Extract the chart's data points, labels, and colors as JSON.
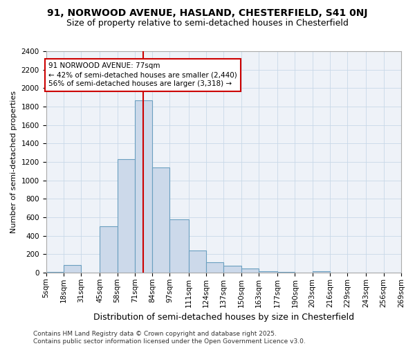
{
  "title1": "91, NORWOOD AVENUE, HASLAND, CHESTERFIELD, S41 0NJ",
  "title2": "Size of property relative to semi-detached houses in Chesterfield",
  "xlabel": "Distribution of semi-detached houses by size in Chesterfield",
  "ylabel": "Number of semi-detached properties",
  "bins": [
    5,
    18,
    31,
    45,
    58,
    71,
    84,
    97,
    111,
    124,
    137,
    150,
    163,
    177,
    190,
    203,
    216,
    229,
    243,
    256,
    269
  ],
  "bin_labels": [
    "5sqm",
    "18sqm",
    "31sqm",
    "45sqm",
    "58sqm",
    "71sqm",
    "84sqm",
    "97sqm",
    "111sqm",
    "124sqm",
    "137sqm",
    "150sqm",
    "163sqm",
    "177sqm",
    "190sqm",
    "203sqm",
    "216sqm",
    "229sqm",
    "243sqm",
    "256sqm",
    "269sqm"
  ],
  "heights": [
    10,
    80,
    0,
    500,
    1230,
    1870,
    1140,
    575,
    240,
    115,
    75,
    45,
    15,
    10,
    0,
    15,
    0,
    0,
    0,
    0
  ],
  "bar_color": "#ccd9ea",
  "bar_edge_color": "#6a9fc0",
  "vline_x": 77,
  "vline_color": "#cc0000",
  "annotation_text": "91 NORWOOD AVENUE: 77sqm\n← 42% of semi-detached houses are smaller (2,440)\n56% of semi-detached houses are larger (3,318) →",
  "annotation_box_color": "white",
  "annotation_box_edge_color": "#cc0000",
  "ylim": [
    0,
    2400
  ],
  "yticks": [
    0,
    200,
    400,
    600,
    800,
    1000,
    1200,
    1400,
    1600,
    1800,
    2000,
    2200,
    2400
  ],
  "grid_color": "#c8d8e8",
  "bg_color": "#eef2f8",
  "footer": "Contains HM Land Registry data © Crown copyright and database right 2025.\nContains public sector information licensed under the Open Government Licence v3.0.",
  "title1_fontsize": 10,
  "title2_fontsize": 9,
  "xlabel_fontsize": 9,
  "ylabel_fontsize": 8,
  "tick_fontsize": 7.5,
  "annotation_fontsize": 7.5,
  "footer_fontsize": 6.5
}
